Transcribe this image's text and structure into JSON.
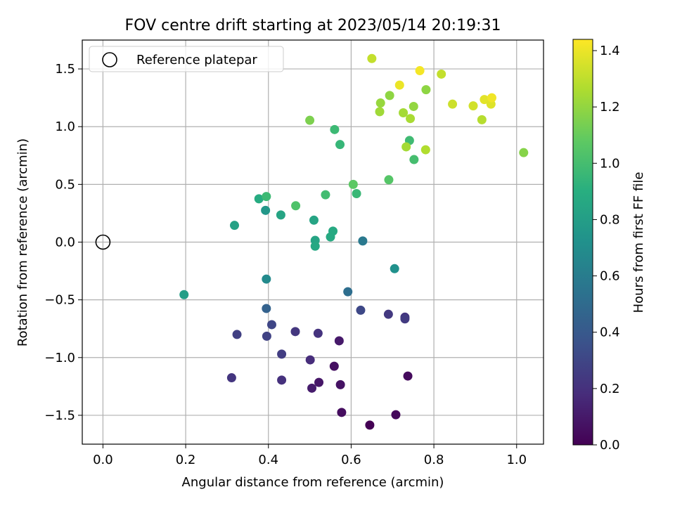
{
  "chart_data": {
    "type": "scatter",
    "title": "FOV centre drift starting at 2023/05/14 20:19:31",
    "xlabel": "Angular distance from reference (arcmin)",
    "ylabel": "Rotation from reference (arcmin)",
    "xlim": [
      -0.05,
      1.065
    ],
    "ylim": [
      -1.75,
      1.75
    ],
    "xticks": [
      "0.0",
      "0.2",
      "0.4",
      "0.6",
      "0.8",
      "1.0"
    ],
    "yticks": [
      "1.5",
      "1.0",
      "0.5",
      "0.0",
      "−0.5",
      "−1.0",
      "−1.5"
    ],
    "grid": true,
    "legend_position": "top-left",
    "reference": {
      "label": "Reference platepar",
      "x": 0.0,
      "y": 0.0
    },
    "colorbar": {
      "label": "Hours from first FF file",
      "colormap": "viridis",
      "range": [
        0.0,
        1.44
      ],
      "ticks": [
        "0.0",
        "0.2",
        "0.4",
        "0.6",
        "0.8",
        "1.0",
        "1.2",
        "1.4"
      ]
    },
    "points": [
      {
        "x": 0.645,
        "y": -1.585,
        "t": 0.0
      },
      {
        "x": 0.708,
        "y": -1.495,
        "t": 0.03
      },
      {
        "x": 0.577,
        "y": -1.475,
        "t": 0.05
      },
      {
        "x": 0.737,
        "y": -1.16,
        "t": 0.04
      },
      {
        "x": 0.559,
        "y": -1.075,
        "t": 0.06
      },
      {
        "x": 0.574,
        "y": -1.235,
        "t": 0.07
      },
      {
        "x": 0.522,
        "y": -1.215,
        "t": 0.09
      },
      {
        "x": 0.505,
        "y": -1.265,
        "t": 0.11
      },
      {
        "x": 0.571,
        "y": -0.855,
        "t": 0.1
      },
      {
        "x": 0.501,
        "y": -1.02,
        "t": 0.18
      },
      {
        "x": 0.432,
        "y": -1.195,
        "t": 0.2
      },
      {
        "x": 0.311,
        "y": -1.175,
        "t": 0.22
      },
      {
        "x": 0.52,
        "y": -0.79,
        "t": 0.21
      },
      {
        "x": 0.465,
        "y": -0.775,
        "t": 0.23
      },
      {
        "x": 0.432,
        "y": -0.97,
        "t": 0.26
      },
      {
        "x": 0.396,
        "y": -0.815,
        "t": 0.28
      },
      {
        "x": 0.324,
        "y": -0.8,
        "t": 0.27
      },
      {
        "x": 0.408,
        "y": -0.715,
        "t": 0.3
      },
      {
        "x": 0.69,
        "y": -0.625,
        "t": 0.24
      },
      {
        "x": 0.73,
        "y": -0.65,
        "t": 0.22
      },
      {
        "x": 0.73,
        "y": -0.665,
        "t": 0.25
      },
      {
        "x": 0.623,
        "y": -0.59,
        "t": 0.31
      },
      {
        "x": 0.395,
        "y": -0.575,
        "t": 0.45
      },
      {
        "x": 0.592,
        "y": -0.43,
        "t": 0.52
      },
      {
        "x": 0.628,
        "y": 0.01,
        "t": 0.58
      },
      {
        "x": 0.395,
        "y": -0.32,
        "t": 0.68
      },
      {
        "x": 0.705,
        "y": -0.23,
        "t": 0.72
      },
      {
        "x": 0.196,
        "y": -0.455,
        "t": 0.8
      },
      {
        "x": 0.318,
        "y": 0.145,
        "t": 0.82
      },
      {
        "x": 0.393,
        "y": 0.275,
        "t": 0.76
      },
      {
        "x": 0.43,
        "y": 0.235,
        "t": 0.84
      },
      {
        "x": 0.377,
        "y": 0.375,
        "t": 0.88
      },
      {
        "x": 0.513,
        "y": 0.015,
        "t": 0.84
      },
      {
        "x": 0.513,
        "y": -0.035,
        "t": 0.86
      },
      {
        "x": 0.55,
        "y": 0.045,
        "t": 0.87
      },
      {
        "x": 0.556,
        "y": 0.095,
        "t": 0.87
      },
      {
        "x": 0.51,
        "y": 0.19,
        "t": 0.84
      },
      {
        "x": 0.395,
        "y": 0.395,
        "t": 0.97
      },
      {
        "x": 0.466,
        "y": 0.315,
        "t": 1.03
      },
      {
        "x": 0.538,
        "y": 0.41,
        "t": 0.99
      },
      {
        "x": 0.613,
        "y": 0.42,
        "t": 0.96
      },
      {
        "x": 0.605,
        "y": 0.5,
        "t": 1.07
      },
      {
        "x": 0.691,
        "y": 0.54,
        "t": 1.05
      },
      {
        "x": 0.573,
        "y": 0.845,
        "t": 0.95
      },
      {
        "x": 0.56,
        "y": 0.975,
        "t": 0.97
      },
      {
        "x": 0.752,
        "y": 0.715,
        "t": 1.0
      },
      {
        "x": 0.741,
        "y": 0.88,
        "t": 0.98
      },
      {
        "x": 0.5,
        "y": 1.055,
        "t": 1.15
      },
      {
        "x": 0.733,
        "y": 0.825,
        "t": 1.24
      },
      {
        "x": 0.78,
        "y": 0.8,
        "t": 1.27
      },
      {
        "x": 1.017,
        "y": 0.775,
        "t": 1.17
      },
      {
        "x": 0.669,
        "y": 1.13,
        "t": 1.23
      },
      {
        "x": 0.671,
        "y": 1.205,
        "t": 1.21
      },
      {
        "x": 0.693,
        "y": 1.27,
        "t": 1.19
      },
      {
        "x": 0.726,
        "y": 1.12,
        "t": 1.24
      },
      {
        "x": 0.743,
        "y": 1.07,
        "t": 1.25
      },
      {
        "x": 0.751,
        "y": 1.175,
        "t": 1.2
      },
      {
        "x": 0.781,
        "y": 1.32,
        "t": 1.19
      },
      {
        "x": 0.65,
        "y": 1.59,
        "t": 1.31
      },
      {
        "x": 0.717,
        "y": 1.36,
        "t": 1.4
      },
      {
        "x": 0.766,
        "y": 1.485,
        "t": 1.42
      },
      {
        "x": 0.818,
        "y": 1.455,
        "t": 1.31
      },
      {
        "x": 0.845,
        "y": 1.195,
        "t": 1.33
      },
      {
        "x": 0.895,
        "y": 1.18,
        "t": 1.34
      },
      {
        "x": 0.916,
        "y": 1.06,
        "t": 1.28
      },
      {
        "x": 0.922,
        "y": 1.235,
        "t": 1.38
      },
      {
        "x": 0.938,
        "y": 1.195,
        "t": 1.37
      },
      {
        "x": 0.94,
        "y": 1.25,
        "t": 1.41
      }
    ]
  }
}
